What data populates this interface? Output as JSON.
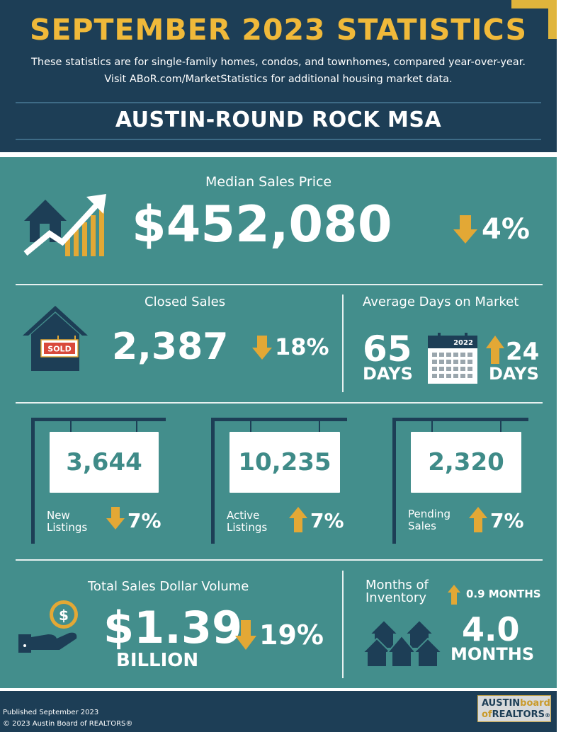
{
  "header": {
    "title": "SEPTEMBER 2023 STATISTICS",
    "subtitle_line1": "These statistics are for single-family homes, condos, and townhomes, compared year-over-year.",
    "subtitle_line2": "Visit ABoR.com/MarketStatistics for additional housing market data.",
    "region": "AUSTIN-ROUND ROCK MSA"
  },
  "median_sales_price": {
    "label": "Median Sales Price",
    "value": "$452,080",
    "change": "4%",
    "direction": "down"
  },
  "closed_sales": {
    "label": "Closed Sales",
    "value": "2,387",
    "change": "18%",
    "direction": "down",
    "sign_text": "SOLD"
  },
  "days_on_market": {
    "label": "Average Days on Market",
    "value": "65",
    "unit": "DAYS",
    "calendar_year": "2022",
    "change": "24",
    "change_unit": "DAYS",
    "direction": "up"
  },
  "listings": [
    {
      "value": "3,644",
      "label_line1": "New",
      "label_line2": "Listings",
      "change": "7%",
      "direction": "down"
    },
    {
      "value": "10,235",
      "label_line1": "Active",
      "label_line2": "Listings",
      "change": "7%",
      "direction": "up"
    },
    {
      "value": "2,320",
      "label_line1": "Pending",
      "label_line2": "Sales",
      "change": "7%",
      "direction": "up"
    }
  ],
  "dollar_volume": {
    "label": "Total Sales Dollar Volume",
    "value": "$1.39",
    "unit": "BILLION",
    "change": "19%",
    "direction": "down"
  },
  "months_inventory": {
    "label_line1": "Months of",
    "label_line2": "Inventory",
    "change": "0.9 MONTHS",
    "direction": "up",
    "value": "4.0",
    "unit": "MONTHS"
  },
  "footer": {
    "published": "Published September 2023",
    "copyright": "© 2023 Austin Board of REALTORS®",
    "logo_line1_a": "AUSTIN",
    "logo_line1_b": "board",
    "logo_line2_a": "of",
    "logo_line2_b": "REALTORS",
    "logo_reg": "®"
  },
  "colors": {
    "navy": "#1d3e56",
    "teal": "#438e8c",
    "gold": "#f0b93a",
    "arrow": "#e3a835"
  }
}
